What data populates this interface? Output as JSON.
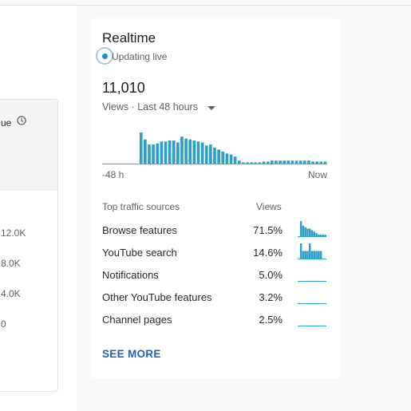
{
  "left_card": {
    "title_partial": "ue",
    "clock_icon": "clock-icon",
    "values": [
      "12.0K",
      "8.0K",
      "4.0K",
      "0"
    ]
  },
  "realtime": {
    "title": "Realtime",
    "status": "Updating live",
    "total_views": "11,010",
    "metric_label": "Views · Last 48 hours",
    "dropdown_icon": "caret-down-icon",
    "accent_color": "#2ca0c8",
    "chart_data": {
      "type": "bar",
      "x_start_label": "-48 h",
      "x_end_label": "Now",
      "values": [
        0,
        0,
        0,
        0,
        0,
        0,
        0,
        0,
        0,
        31,
        24,
        19,
        19,
        20,
        22,
        22,
        23,
        23,
        21,
        27,
        25,
        24,
        23,
        22,
        21,
        18,
        19,
        16,
        14,
        12,
        10,
        9,
        7,
        3,
        1,
        1,
        1,
        1,
        1,
        2,
        2,
        3,
        3,
        3,
        3,
        3,
        3,
        3,
        3,
        3,
        3,
        2,
        2,
        2,
        2
      ]
    },
    "sources_header": {
      "label": "Top traffic sources",
      "metric": "Views"
    },
    "sources": [
      {
        "name": "Browse features",
        "percent": "71.5%",
        "spark": [
          0,
          10,
          7,
          6,
          5,
          5,
          4,
          3,
          2,
          1,
          1,
          1,
          1
        ]
      },
      {
        "name": "YouTube search",
        "percent": "14.6%",
        "spark": [
          0,
          2,
          1,
          1,
          1,
          2,
          1,
          1,
          1,
          1,
          1,
          0,
          0
        ]
      },
      {
        "name": "Notifications",
        "percent": "5.0%",
        "spark": [
          0,
          0,
          0,
          0,
          0,
          0,
          0,
          0,
          0,
          0,
          0,
          0,
          0
        ]
      },
      {
        "name": "Other YouTube features",
        "percent": "3.2%",
        "spark": [
          0,
          0,
          0,
          0,
          0,
          0,
          0,
          0,
          0,
          0,
          0,
          0,
          0
        ]
      },
      {
        "name": "Channel pages",
        "percent": "2.5%",
        "spark": [
          0,
          0,
          0,
          0,
          0,
          0,
          0,
          0,
          0,
          0,
          0,
          0,
          0
        ]
      }
    ],
    "see_more": "SEE MORE"
  }
}
